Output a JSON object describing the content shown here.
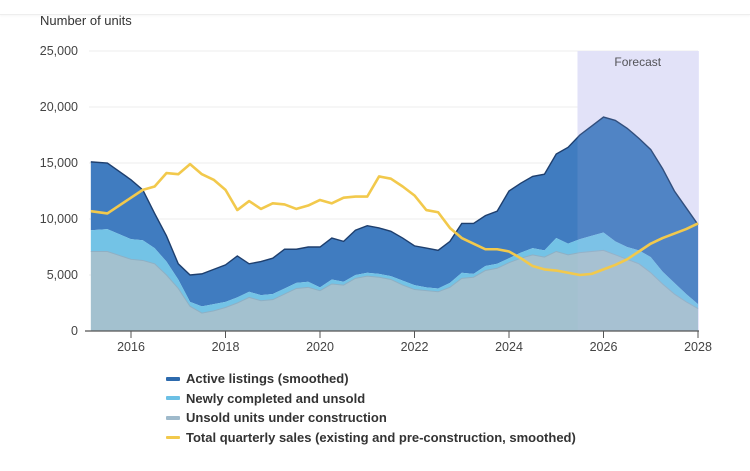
{
  "chart_data": {
    "type": "area",
    "title": "",
    "ylabel": "Number of units",
    "xlabel": "",
    "ylim": [
      0,
      25000
    ],
    "xlim": [
      2015.15,
      2028.0
    ],
    "yticks": [
      0,
      5000,
      10000,
      15000,
      20000,
      25000
    ],
    "ytick_labels": [
      "0",
      "5,000",
      "10,000",
      "15,000",
      "20,000",
      "25,000"
    ],
    "xticks": [
      2016,
      2018,
      2020,
      2022,
      2024,
      2026,
      2028
    ],
    "xtick_labels": [
      "2016",
      "2018",
      "2020",
      "2022",
      "2024",
      "2026",
      "2028"
    ],
    "grid": true,
    "legend_position": "bottom",
    "annotations": [
      {
        "label": "Forecast",
        "x_start": 2025.45,
        "x_end": 2028.0,
        "color": "#e6e6fa"
      }
    ],
    "stacked_note": "Area series are stacked; cumulative tops listed per series",
    "x": [
      2015.15,
      2015.5,
      2016.0,
      2016.25,
      2016.5,
      2016.75,
      2017.0,
      2017.25,
      2017.5,
      2017.75,
      2018.0,
      2018.25,
      2018.5,
      2018.75,
      2019.0,
      2019.25,
      2019.5,
      2019.75,
      2020.0,
      2020.25,
      2020.5,
      2020.75,
      2021.0,
      2021.25,
      2021.5,
      2021.75,
      2022.0,
      2022.25,
      2022.5,
      2022.75,
      2023.0,
      2023.25,
      2023.5,
      2023.75,
      2024.0,
      2024.25,
      2024.5,
      2024.75,
      2025.0,
      2025.25,
      2025.5,
      2025.75,
      2026.0,
      2026.25,
      2026.5,
      2026.75,
      2027.0,
      2027.25,
      2027.5,
      2027.75,
      2028.0
    ],
    "series": [
      {
        "name": "Unsold units under construction",
        "kind": "area",
        "color": "#a3c1cf",
        "values": [
          7100,
          7100,
          6400,
          6300,
          6000,
          5000,
          3800,
          2200,
          1600,
          1800,
          2100,
          2500,
          3000,
          2700,
          2800,
          3300,
          3800,
          3900,
          3600,
          4200,
          4100,
          4700,
          4900,
          4800,
          4600,
          4100,
          3700,
          3600,
          3500,
          3900,
          4700,
          4800,
          5400,
          5600,
          6100,
          6500,
          6800,
          6600,
          7100,
          6800,
          7000,
          7100,
          7200,
          6800,
          6400,
          6000,
          5200,
          4200,
          3300,
          2600,
          2000
        ]
      },
      {
        "name": "Newly completed and unsold",
        "kind": "area",
        "color": "#6cc0e5",
        "cumulative_top": [
          9000,
          9100,
          8200,
          8100,
          7400,
          6200,
          4600,
          2600,
          2200,
          2400,
          2600,
          3000,
          3500,
          3200,
          3300,
          3800,
          4300,
          4400,
          3900,
          4600,
          4400,
          5000,
          5200,
          5100,
          4900,
          4500,
          4100,
          3900,
          3800,
          4300,
          5200,
          5100,
          5800,
          6000,
          6500,
          7000,
          7400,
          7200,
          8300,
          7800,
          8200,
          8500,
          8800,
          8000,
          7500,
          7200,
          6600,
          5300,
          4300,
          3300,
          2400
        ]
      },
      {
        "name": "Active listings (smoothed)",
        "kind": "area",
        "color": "#3a78be",
        "outline_color": "#1e3f6e",
        "cumulative_top": [
          15100,
          15000,
          13500,
          12600,
          10500,
          8500,
          6000,
          5000,
          5100,
          5500,
          5900,
          6700,
          6000,
          6200,
          6500,
          7300,
          7300,
          7500,
          7500,
          8300,
          8000,
          9000,
          9400,
          9200,
          8900,
          8300,
          7600,
          7400,
          7200,
          8000,
          9600,
          9600,
          10300,
          10700,
          12500,
          13200,
          13800,
          14000,
          15800,
          16400,
          17500,
          18300,
          19100,
          18800,
          18100,
          17200,
          16200,
          14500,
          12500,
          11000,
          9500
        ]
      },
      {
        "name": "Total quarterly sales (existing and pre-construction, smoothed)",
        "kind": "line",
        "color": "#f2c94c",
        "values": [
          10700,
          10500,
          11900,
          12600,
          12900,
          14100,
          14000,
          14900,
          14000,
          13500,
          12600,
          10800,
          11600,
          10900,
          11400,
          11300,
          10900,
          11200,
          11700,
          11400,
          11900,
          12000,
          12000,
          13800,
          13600,
          12900,
          12100,
          10800,
          10600,
          9200,
          8300,
          7800,
          7300,
          7300,
          7100,
          6500,
          5800,
          5500,
          5400,
          5200,
          5000,
          5100,
          5500,
          5900,
          6400,
          7100,
          7800,
          8300,
          8700,
          9100,
          9600
        ]
      }
    ],
    "legend": [
      {
        "label": "Active listings (smoothed)",
        "color": "#2d6aad"
      },
      {
        "label": "Newly completed and unsold",
        "color": "#6cc0e5"
      },
      {
        "label": "Unsold units under construction",
        "color": "#9fbacb"
      },
      {
        "label": "Total quarterly sales (existing and pre-construction, smoothed)",
        "color": "#f2c94c"
      }
    ]
  }
}
